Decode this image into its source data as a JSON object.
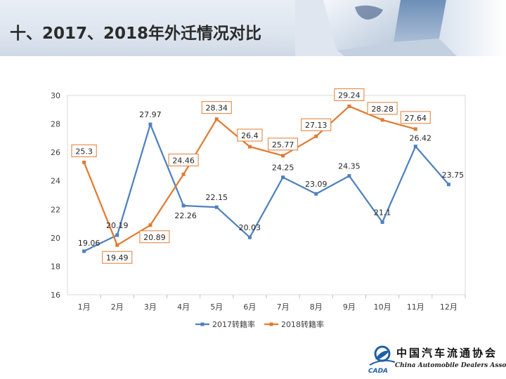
{
  "slide": {
    "title": "十、2017、2018年外迁情况对比"
  },
  "logo": {
    "mark_text": "CADA",
    "name_cn": "中国汽车流通协会",
    "name_en": "China Automobile Dealers Association",
    "color": "#1f5fa8"
  },
  "chart_data": {
    "type": "line",
    "categories": [
      "1月",
      "2月",
      "3月",
      "4月",
      "5月",
      "6月",
      "7月",
      "8月",
      "9月",
      "10月",
      "11月",
      "12月"
    ],
    "ylim": [
      16,
      30
    ],
    "yticks": [
      16,
      18,
      20,
      22,
      24,
      26,
      28,
      30
    ],
    "grid": false,
    "legend_position": "bottom",
    "series": [
      {
        "name": "2017转籍率",
        "color": "#4f81bd",
        "marker": "square",
        "label_style": "plain",
        "values": [
          19.06,
          20.19,
          27.97,
          22.26,
          22.15,
          20.03,
          24.25,
          23.09,
          24.35,
          21.1,
          26.42,
          23.75
        ],
        "labels": [
          "19.06",
          "20.19",
          "27.97",
          "22.26",
          "22.15",
          "20.03",
          "24.25",
          "23.09",
          "24.35",
          "21.1",
          "26.42",
          "23.75"
        ]
      },
      {
        "name": "2018转籍率",
        "color": "#e07b33",
        "marker": "square",
        "label_style": "boxed",
        "values": [
          25.3,
          19.49,
          20.89,
          24.46,
          28.34,
          26.4,
          25.77,
          27.13,
          29.24,
          28.28,
          27.64,
          null
        ],
        "labels": [
          "25.3",
          "19.49",
          "20.89",
          "24.46",
          "28.34",
          "26.4",
          "25.77",
          "27.13",
          "29.24",
          "28.28",
          "27.64",
          ""
        ]
      }
    ]
  }
}
